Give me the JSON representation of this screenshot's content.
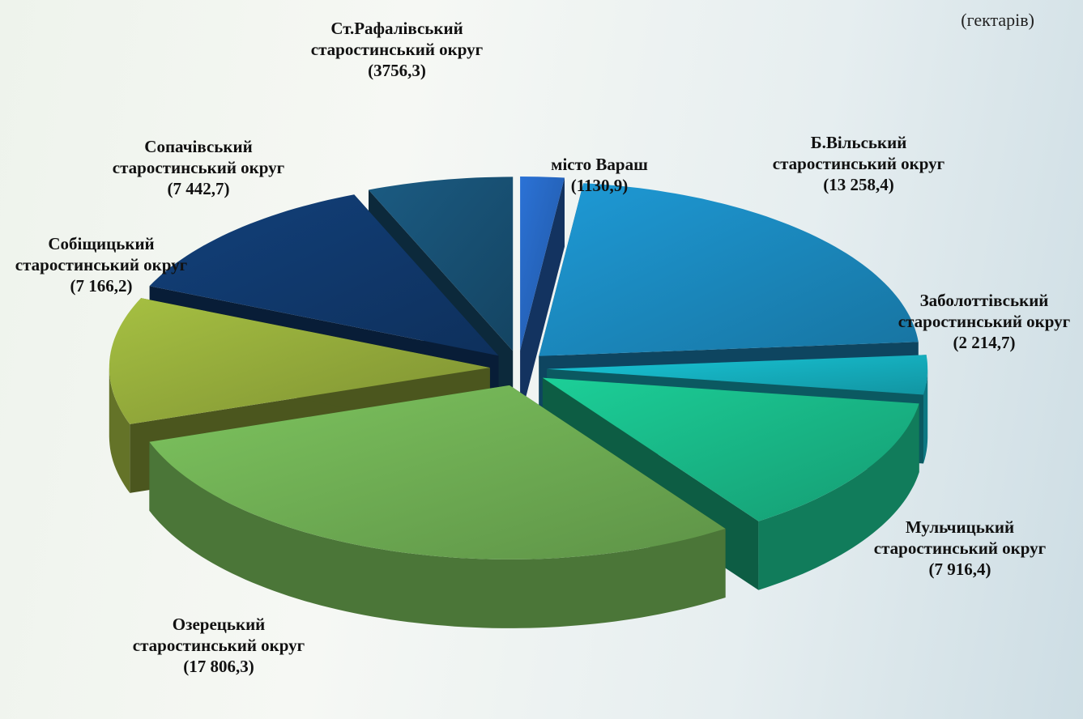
{
  "chart_data": {
    "type": "pie",
    "unit": "(гектарів)",
    "categories": [
      "місто Вараш",
      "Б.Вільський старостинський округ",
      "Заболоттівський старостинський округ",
      "Мульчицький старостинський округ",
      "Озерецький старостинський округ",
      "Собіщицький старостинський округ",
      "Сопачівський старостинський округ",
      "Ст.Рафалівський старостинський округ"
    ],
    "values": [
      1130.9,
      13258.4,
      2214.7,
      7916.4,
      17806.3,
      7166.2,
      7442.7,
      3756.3
    ],
    "value_labels": [
      "(1130,9)",
      "(13 258,4)",
      "(2 214,7)",
      "(7 916,4)",
      "(17 806,3)",
      "(7 166,2)",
      "(7 442,7)",
      "(3756,3)"
    ],
    "colors": [
      "#2b72d6",
      "#1e9ad6",
      "#18c6d8",
      "#1ccf98",
      "#7dc45e",
      "#a6c042",
      "#12407a",
      "#1b5b82"
    ]
  }
}
